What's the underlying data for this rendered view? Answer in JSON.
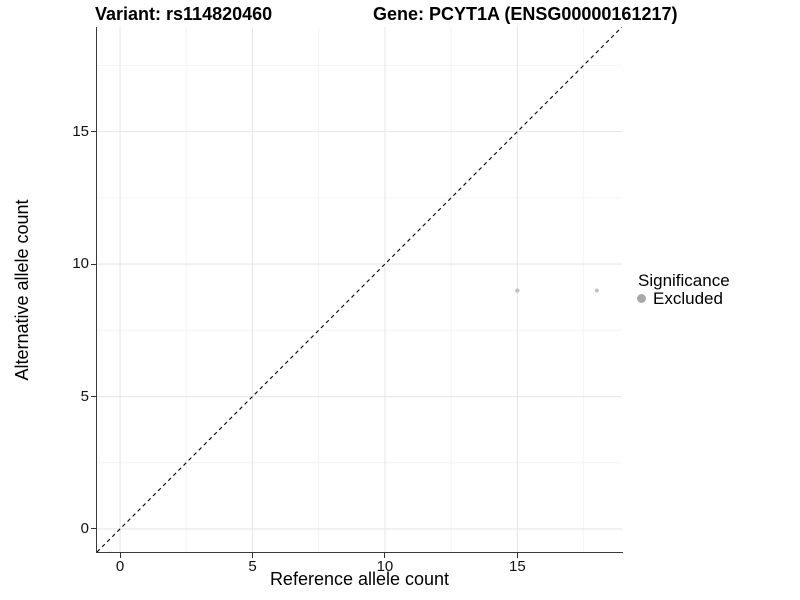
{
  "chart_data": {
    "type": "scatter",
    "title_left": "Variant: rs114820460",
    "title_right": "Gene: PCYT1A (ENSG00000161217)",
    "xlabel": "Reference allele count",
    "ylabel": "Alternative allele count",
    "xlim": [
      -0.87,
      18.95
    ],
    "ylim": [
      -0.87,
      18.95
    ],
    "x_major_ticks": [
      0,
      5,
      10,
      15
    ],
    "y_major_ticks": [
      0,
      5,
      10,
      15
    ],
    "x_minor_ticks": [
      2.5,
      7.5,
      12.5,
      17.5
    ],
    "y_minor_ticks": [
      2.5,
      7.5,
      12.5,
      17.5
    ],
    "grid": {
      "major": true,
      "minor": true,
      "major_color": "#e7e7e7",
      "minor_color": "#f4f4f4"
    },
    "identity_line": {
      "type": "y = x",
      "style": "dashed",
      "color": "#000000"
    },
    "series": [
      {
        "name": "Excluded",
        "color": "#c2c2c2",
        "points": [
          {
            "x": 15,
            "y": 9,
            "radius": 2.2
          },
          {
            "x": 18,
            "y": 9,
            "radius": 2.0
          }
        ]
      }
    ],
    "legend": {
      "title": "Significance",
      "position": "right",
      "items": [
        {
          "label": "Excluded",
          "color": "#a8a8a8"
        }
      ]
    }
  }
}
